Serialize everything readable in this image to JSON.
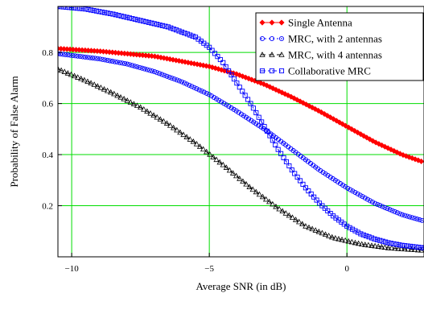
{
  "chart_data": {
    "type": "line",
    "title": "",
    "xlabel": "Average SNR (in dB)",
    "ylabel": "Probability of False Alarm",
    "xlim": [
      -10.5,
      2.8
    ],
    "ylim": [
      0,
      0.98
    ],
    "xticks": [
      -10,
      -5,
      0
    ],
    "xtick_labels": [
      "−10",
      "−5",
      "0"
    ],
    "yticks": [
      0.2,
      0.4,
      0.6,
      0.8
    ],
    "ytick_labels": [
      "0.2",
      "0.4",
      "0.6",
      "0.8"
    ],
    "grid": true,
    "grid_color": "#00dd00",
    "legend_position": "top-right",
    "series": [
      {
        "name": "Single Antenna",
        "color": "#ff0000",
        "marker": "diamond",
        "line_style": "solid",
        "x": [
          -10.5,
          -9,
          -8,
          -7,
          -6,
          -5,
          -4,
          -3,
          -2,
          -1,
          0,
          1,
          2,
          2.8
        ],
        "y": [
          0.815,
          0.805,
          0.795,
          0.785,
          0.765,
          0.745,
          0.715,
          0.675,
          0.625,
          0.57,
          0.51,
          0.45,
          0.4,
          0.37
        ]
      },
      {
        "name": "MRC, with 2 antennas",
        "color": "#0000ff",
        "marker": "circle",
        "line_style": "dotted",
        "x": [
          -10.5,
          -9,
          -8,
          -7,
          -6,
          -5,
          -4,
          -3,
          -2,
          -1,
          0,
          1,
          2,
          2.8
        ],
        "y": [
          0.795,
          0.775,
          0.755,
          0.725,
          0.685,
          0.635,
          0.57,
          0.5,
          0.42,
          0.34,
          0.27,
          0.21,
          0.165,
          0.14
        ]
      },
      {
        "name": "MRC, with 4 antennas",
        "color": "#000000",
        "marker": "triangle",
        "line_style": "dashed",
        "x": [
          -10.5,
          -9.5,
          -8.5,
          -7.5,
          -6.5,
          -5.5,
          -4.5,
          -3.5,
          -2.5,
          -1.5,
          -0.5,
          0.5,
          1.5,
          2.8
        ],
        "y": [
          0.735,
          0.69,
          0.64,
          0.585,
          0.52,
          0.445,
          0.36,
          0.27,
          0.19,
          0.12,
          0.075,
          0.05,
          0.035,
          0.025
        ]
      },
      {
        "name": "Collaborative MRC",
        "color": "#0000ff",
        "marker": "square",
        "line_style": "dashdot",
        "x": [
          -10.5,
          -9.5,
          -8.5,
          -7.5,
          -6.5,
          -5.5,
          -5,
          -4.5,
          -4,
          -3.5,
          -3,
          -2.5,
          -2,
          -1.5,
          -1,
          -0.5,
          0,
          0.5,
          1,
          1.5,
          2,
          2.8
        ],
        "y": [
          0.98,
          0.97,
          0.95,
          0.925,
          0.9,
          0.86,
          0.82,
          0.76,
          0.68,
          0.6,
          0.51,
          0.42,
          0.34,
          0.27,
          0.21,
          0.16,
          0.12,
          0.09,
          0.07,
          0.055,
          0.045,
          0.035
        ]
      }
    ]
  }
}
